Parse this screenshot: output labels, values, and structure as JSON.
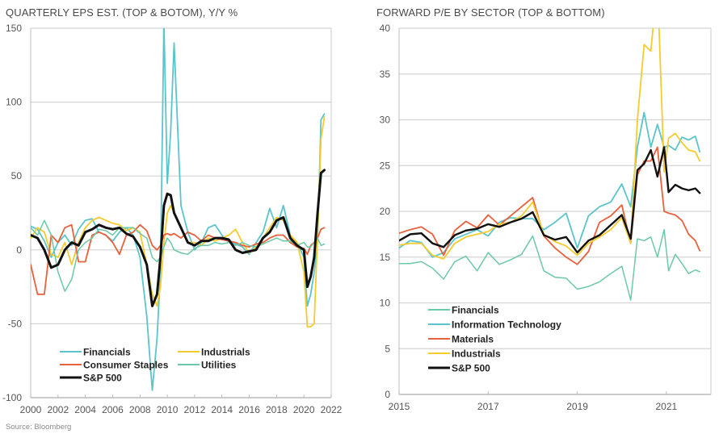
{
  "source": "Source: Bloomberg",
  "chart_data": [
    {
      "type": "line",
      "title": "QUARTERLY EPS EST. (TOP & BOTOM), Y/Y %",
      "xlabel": "",
      "ylabel": "",
      "xlim": [
        2000,
        2022
      ],
      "ylim": [
        -100,
        150
      ],
      "xticks": [
        "2000",
        "2002",
        "2004",
        "2006",
        "2008",
        "2010",
        "2012",
        "2014",
        "2016",
        "2018",
        "2020",
        "2022"
      ],
      "yticks": [
        "150",
        "100",
        "50",
        "0",
        "-50",
        "-100"
      ],
      "grid": "horizontal",
      "legend_placement": "bottom-left",
      "legend": [
        "Financials",
        "Industrials",
        "Consumer Staples",
        "Utilities",
        "S&P 500"
      ],
      "x": [
        2000,
        2000.5,
        2001,
        2001.5,
        2002,
        2002.5,
        2003,
        2003.5,
        2004,
        2004.5,
        2005,
        2005.5,
        2006,
        2006.5,
        2007,
        2007.5,
        2008,
        2008.5,
        2008.9,
        2009.25,
        2009.5,
        2009.75,
        2010,
        2010.25,
        2010.5,
        2011,
        2011.5,
        2012,
        2012.5,
        2013,
        2013.5,
        2014,
        2014.5,
        2015,
        2015.5,
        2016,
        2016.5,
        2017,
        2017.5,
        2018,
        2018.5,
        2019,
        2019.5,
        2020,
        2020.25,
        2020.5,
        2020.75,
        2021,
        2021.25,
        2021.5
      ],
      "series": [
        {
          "name": "Financials",
          "color": "#5BC4CC",
          "values": [
            16,
            14,
            6,
            -5,
            5,
            10,
            3,
            14,
            20,
            21,
            12,
            10,
            6,
            12,
            15,
            10,
            -5,
            -45,
            -95,
            -60,
            -15,
            155,
            45,
            80,
            140,
            30,
            12,
            0,
            5,
            15,
            17,
            10,
            5,
            4,
            2,
            -3,
            5,
            12,
            28,
            15,
            30,
            10,
            5,
            -5,
            -38,
            -30,
            -15,
            5,
            88,
            92
          ]
        },
        {
          "name": "Industrials",
          "color": "#F5CB2E",
          "values": [
            8,
            15,
            12,
            -3,
            -5,
            5,
            -10,
            5,
            15,
            20,
            22,
            20,
            18,
            17,
            13,
            15,
            12,
            -10,
            -30,
            -38,
            -25,
            5,
            25,
            30,
            25,
            15,
            5,
            5,
            3,
            8,
            6,
            8,
            10,
            14,
            5,
            -2,
            2,
            8,
            15,
            22,
            20,
            10,
            5,
            -15,
            -52,
            -52,
            -50,
            10,
            75,
            90
          ]
        },
        {
          "name": "Consumer Staples",
          "color": "#E8603C",
          "values": [
            -10,
            -30,
            -30,
            10,
            5,
            15,
            17,
            -8,
            -8,
            10,
            12,
            10,
            5,
            -3,
            10,
            12,
            17,
            13,
            3,
            0,
            3,
            10,
            11,
            10,
            11,
            8,
            12,
            10,
            6,
            10,
            8,
            7,
            6,
            5,
            3,
            2,
            4,
            5,
            8,
            10,
            10,
            5,
            2,
            1,
            -3,
            3,
            5,
            8,
            14,
            15
          ]
        },
        {
          "name": "Utilities",
          "color": "#6CC9A8",
          "values": [
            15,
            10,
            20,
            10,
            -15,
            -28,
            -20,
            0,
            5,
            8,
            14,
            13,
            10,
            15,
            15,
            15,
            11,
            8,
            -5,
            -8,
            -5,
            2,
            8,
            5,
            0,
            -2,
            -3,
            1,
            3,
            3,
            5,
            4,
            5,
            3,
            5,
            3,
            2,
            4,
            6,
            8,
            6,
            6,
            3,
            5,
            2,
            2,
            5,
            8,
            3,
            4
          ]
        },
        {
          "name": "S&P 500",
          "color": "#111111",
          "values": [
            10,
            8,
            0,
            -12,
            -10,
            0,
            5,
            3,
            12,
            14,
            17,
            15,
            14,
            15,
            11,
            9,
            2,
            -10,
            -38,
            -30,
            -5,
            30,
            38,
            37,
            25,
            15,
            5,
            3,
            6,
            6,
            8,
            8,
            7,
            0,
            -2,
            -1,
            0,
            8,
            12,
            20,
            22,
            8,
            3,
            0,
            -25,
            -18,
            -5,
            25,
            52,
            54
          ]
        }
      ]
    },
    {
      "type": "line",
      "title": "FORWARD P/E BY SECTOR (TOP & BOTTOM)",
      "xlabel": "",
      "ylabel": "",
      "xlim": [
        2015,
        2022
      ],
      "ylim": [
        0,
        40
      ],
      "xticks": [
        "2015",
        "2017",
        "2019",
        "2021"
      ],
      "yticks": [
        "40",
        "35",
        "30",
        "25",
        "20",
        "15",
        "10",
        "5",
        "0"
      ],
      "grid": "horizontal",
      "legend_placement": "bottom-left",
      "legend": [
        "Financials",
        "Information Technology",
        "Materials",
        "Industrials",
        "S&P 500"
      ],
      "x": [
        2015,
        2015.25,
        2015.5,
        2015.75,
        2016,
        2016.25,
        2016.5,
        2016.75,
        2017,
        2017.25,
        2017.5,
        2017.75,
        2018,
        2018.25,
        2018.5,
        2018.75,
        2019,
        2019.25,
        2019.5,
        2019.75,
        2020,
        2020.2,
        2020.35,
        2020.5,
        2020.65,
        2020.8,
        2020.95,
        2021.05,
        2021.2,
        2021.35,
        2021.5,
        2021.65,
        2021.75
      ],
      "series": [
        {
          "name": "Financials",
          "color": "#6CC9A8",
          "values": [
            14.3,
            14.3,
            14.5,
            13.8,
            12.6,
            14.5,
            15.1,
            13.5,
            15.5,
            14.2,
            14.7,
            15.3,
            17.3,
            13.5,
            12.8,
            12.7,
            11.5,
            11.8,
            12.3,
            13.2,
            14,
            10.3,
            17,
            16.8,
            17.2,
            15,
            18,
            13.5,
            15.3,
            14.3,
            13.2,
            13.6,
            13.4
          ]
        },
        {
          "name": "Information Technology",
          "color": "#5BC4CC",
          "values": [
            16,
            16.8,
            16.6,
            15,
            15.5,
            17,
            17.5,
            18,
            17.3,
            18.8,
            19.3,
            19.2,
            19.2,
            18,
            18.8,
            19.8,
            16,
            19.5,
            20.5,
            21,
            23,
            20.5,
            27,
            30.8,
            27,
            29.5,
            27,
            27.2,
            26.7,
            28.1,
            27.8,
            28.2,
            26.5
          ]
        },
        {
          "name": "Materials",
          "color": "#E8603C",
          "values": [
            17.6,
            18,
            18.3,
            17.5,
            15.2,
            17.9,
            18.9,
            18.2,
            19.6,
            18.5,
            19.5,
            20.5,
            21.5,
            17.3,
            16,
            15,
            14.2,
            15.6,
            18.8,
            19.5,
            20.7,
            16.5,
            24,
            25.5,
            25.5,
            27,
            20,
            19.8,
            19.6,
            19,
            17.5,
            16.8,
            15.7
          ]
        },
        {
          "name": "Industrials",
          "color": "#F5CB2E",
          "values": [
            16.3,
            16.5,
            16.5,
            15.2,
            14.8,
            16.5,
            17.2,
            17.5,
            17.8,
            18.6,
            18.8,
            19.5,
            21,
            17.5,
            16.7,
            16.2,
            15.2,
            16.5,
            17.2,
            18,
            19.3,
            16.5,
            30,
            38.2,
            37.5,
            45,
            24.3,
            28,
            28.5,
            27.5,
            26.7,
            26.5,
            25.5
          ]
        },
        {
          "name": "S&P 500",
          "color": "#111111",
          "values": [
            16.8,
            17.5,
            17.6,
            16.5,
            16.1,
            17.4,
            17.9,
            18.1,
            18.6,
            18.3,
            18.8,
            19.2,
            19.9,
            17.4,
            16.9,
            17.2,
            15.5,
            16.8,
            17.4,
            18.5,
            19.6,
            17,
            24.5,
            25.2,
            26.7,
            23.8,
            27,
            22.1,
            22.9,
            22.5,
            22.3,
            22.5,
            22
          ]
        }
      ]
    }
  ]
}
